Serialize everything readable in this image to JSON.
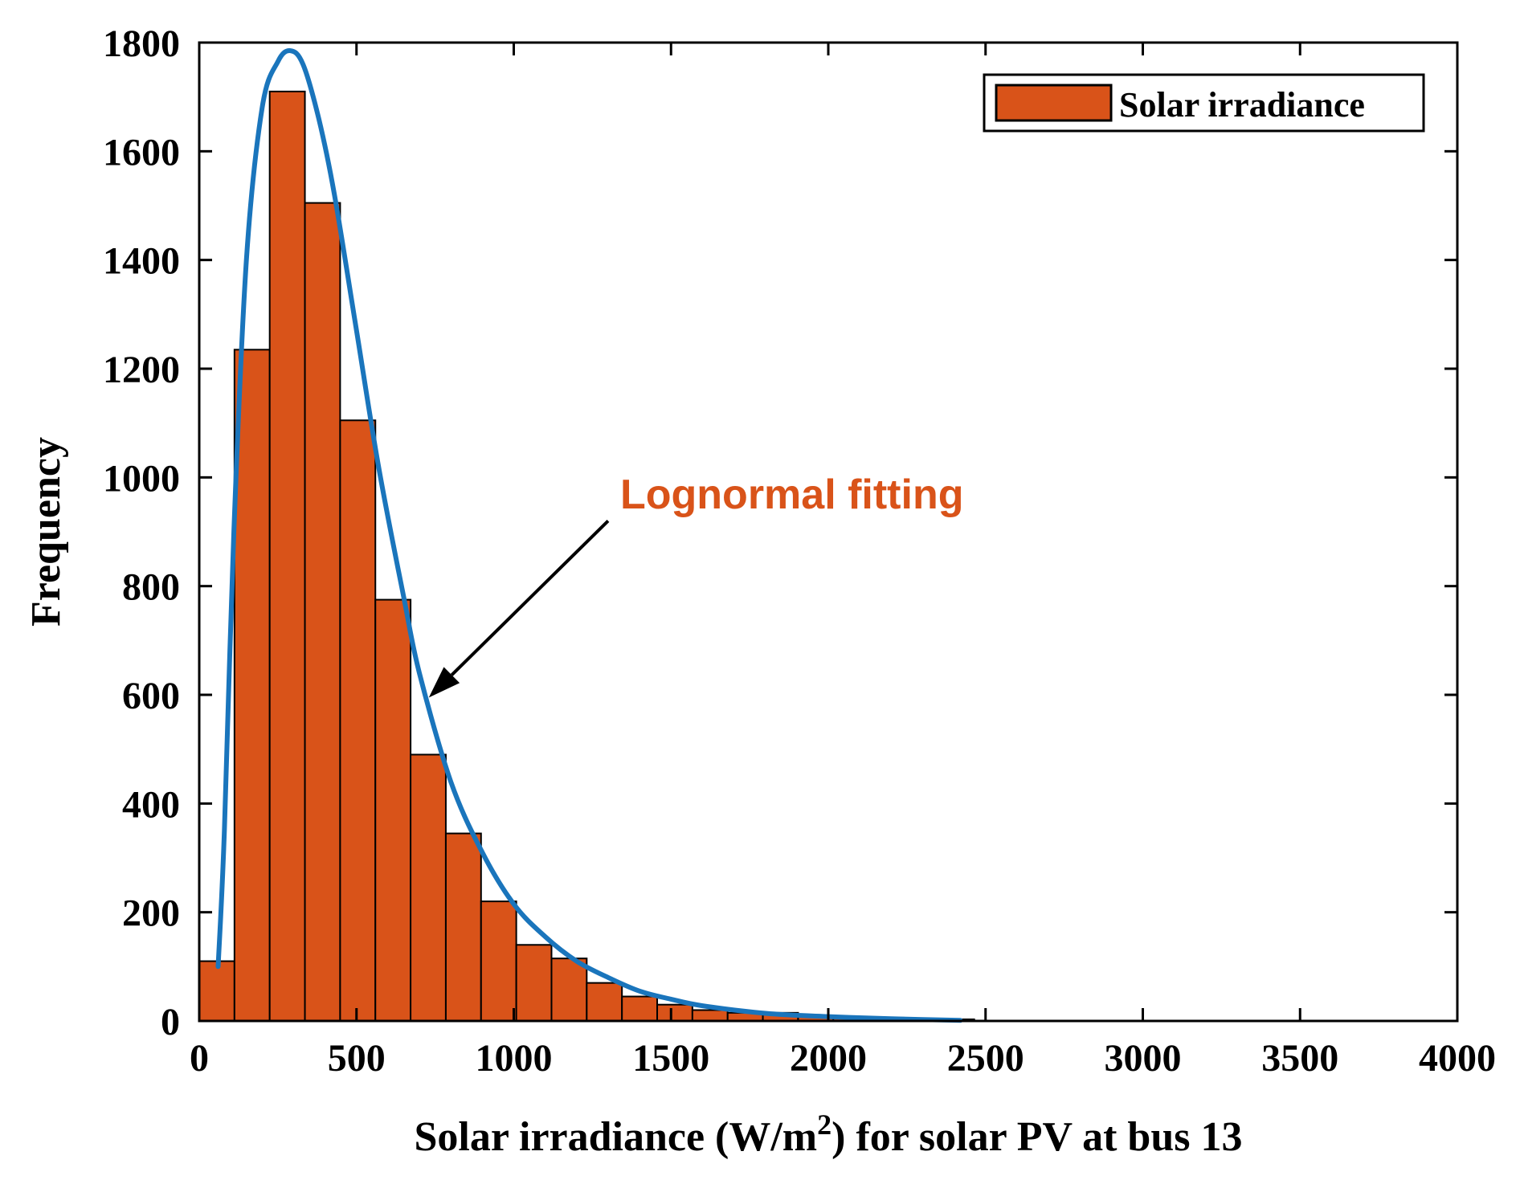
{
  "chart_data": {
    "type": "bar",
    "title": "",
    "xlabel": "Solar irradiance (W/m",
    "xlabel_sup": "2",
    "xlabel_suffix": ") for solar PV at bus 13",
    "ylabel": "Frequency",
    "xlim": [
      0,
      4000
    ],
    "ylim": [
      0,
      1800
    ],
    "xticks": [
      0,
      500,
      1000,
      1500,
      2000,
      2500,
      3000,
      3500,
      4000
    ],
    "yticks": [
      0,
      200,
      400,
      600,
      800,
      1000,
      1200,
      1400,
      1600,
      1800
    ],
    "grid": false,
    "legend": {
      "position": "top-right",
      "entries": [
        "Solar irradiance"
      ]
    },
    "bin_width": 112,
    "bin_edges_start": 0,
    "values": [
      110,
      1235,
      1710,
      1505,
      1105,
      775,
      490,
      345,
      220,
      140,
      115,
      70,
      45,
      30,
      20,
      15,
      15,
      10,
      8,
      6,
      4,
      3
    ],
    "fit_curve": {
      "name": "Lognormal fitting",
      "x": [
        60,
        80,
        110,
        150,
        200,
        250,
        290,
        330,
        380,
        430,
        500,
        570,
        650,
        700,
        800,
        900,
        1000,
        1100,
        1200,
        1300,
        1400,
        1500,
        1600,
        1800,
        2000,
        2200,
        2420
      ],
      "y": [
        100,
        350,
        900,
        1400,
        1680,
        1765,
        1785,
        1760,
        1660,
        1520,
        1270,
        1020,
        780,
        640,
        440,
        310,
        215,
        155,
        110,
        80,
        55,
        40,
        28,
        14,
        8,
        4,
        1
      ]
    },
    "annotation": {
      "text": "Lognormal fitting",
      "arrow_tail": [
        1300,
        920
      ],
      "arrow_head": [
        730,
        595
      ]
    },
    "colors": {
      "bar": "#d95319",
      "curve": "#1a75bc",
      "annotation": "#d95319",
      "axis": "#000000"
    }
  }
}
